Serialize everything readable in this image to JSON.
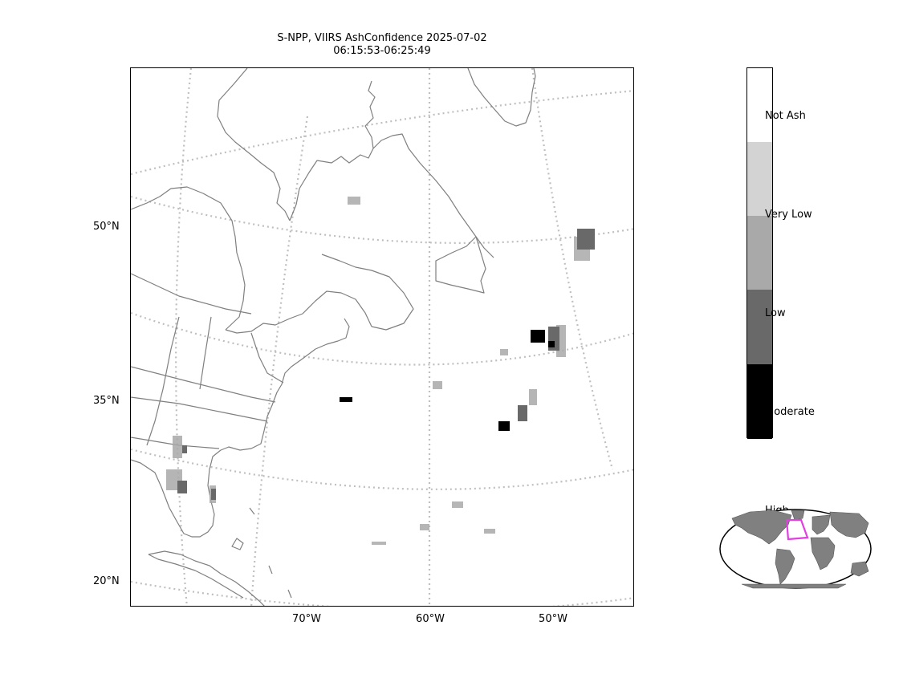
{
  "title": {
    "line1": "S-NPP, VIIRS AshConfidence 2025-07-02",
    "line2": "06:15:53-06:25:49"
  },
  "lat_labels": [
    "50°N",
    "35°N",
    "20°N"
  ],
  "lon_labels": [
    "70°W",
    "60°W",
    "50°W"
  ],
  "colorbar": {
    "labels": [
      "Not Ash",
      "Very Low",
      "Low",
      "Moderate",
      "High"
    ],
    "colors": [
      "#ffffff",
      "#d3d3d3",
      "#a9a9a9",
      "#696969",
      "#000000"
    ]
  },
  "colors": {
    "coastline": "#7f7f7f",
    "gridline": "#bfbfbf",
    "inset_land": "#808080",
    "inset_extent": "#e040e0"
  }
}
